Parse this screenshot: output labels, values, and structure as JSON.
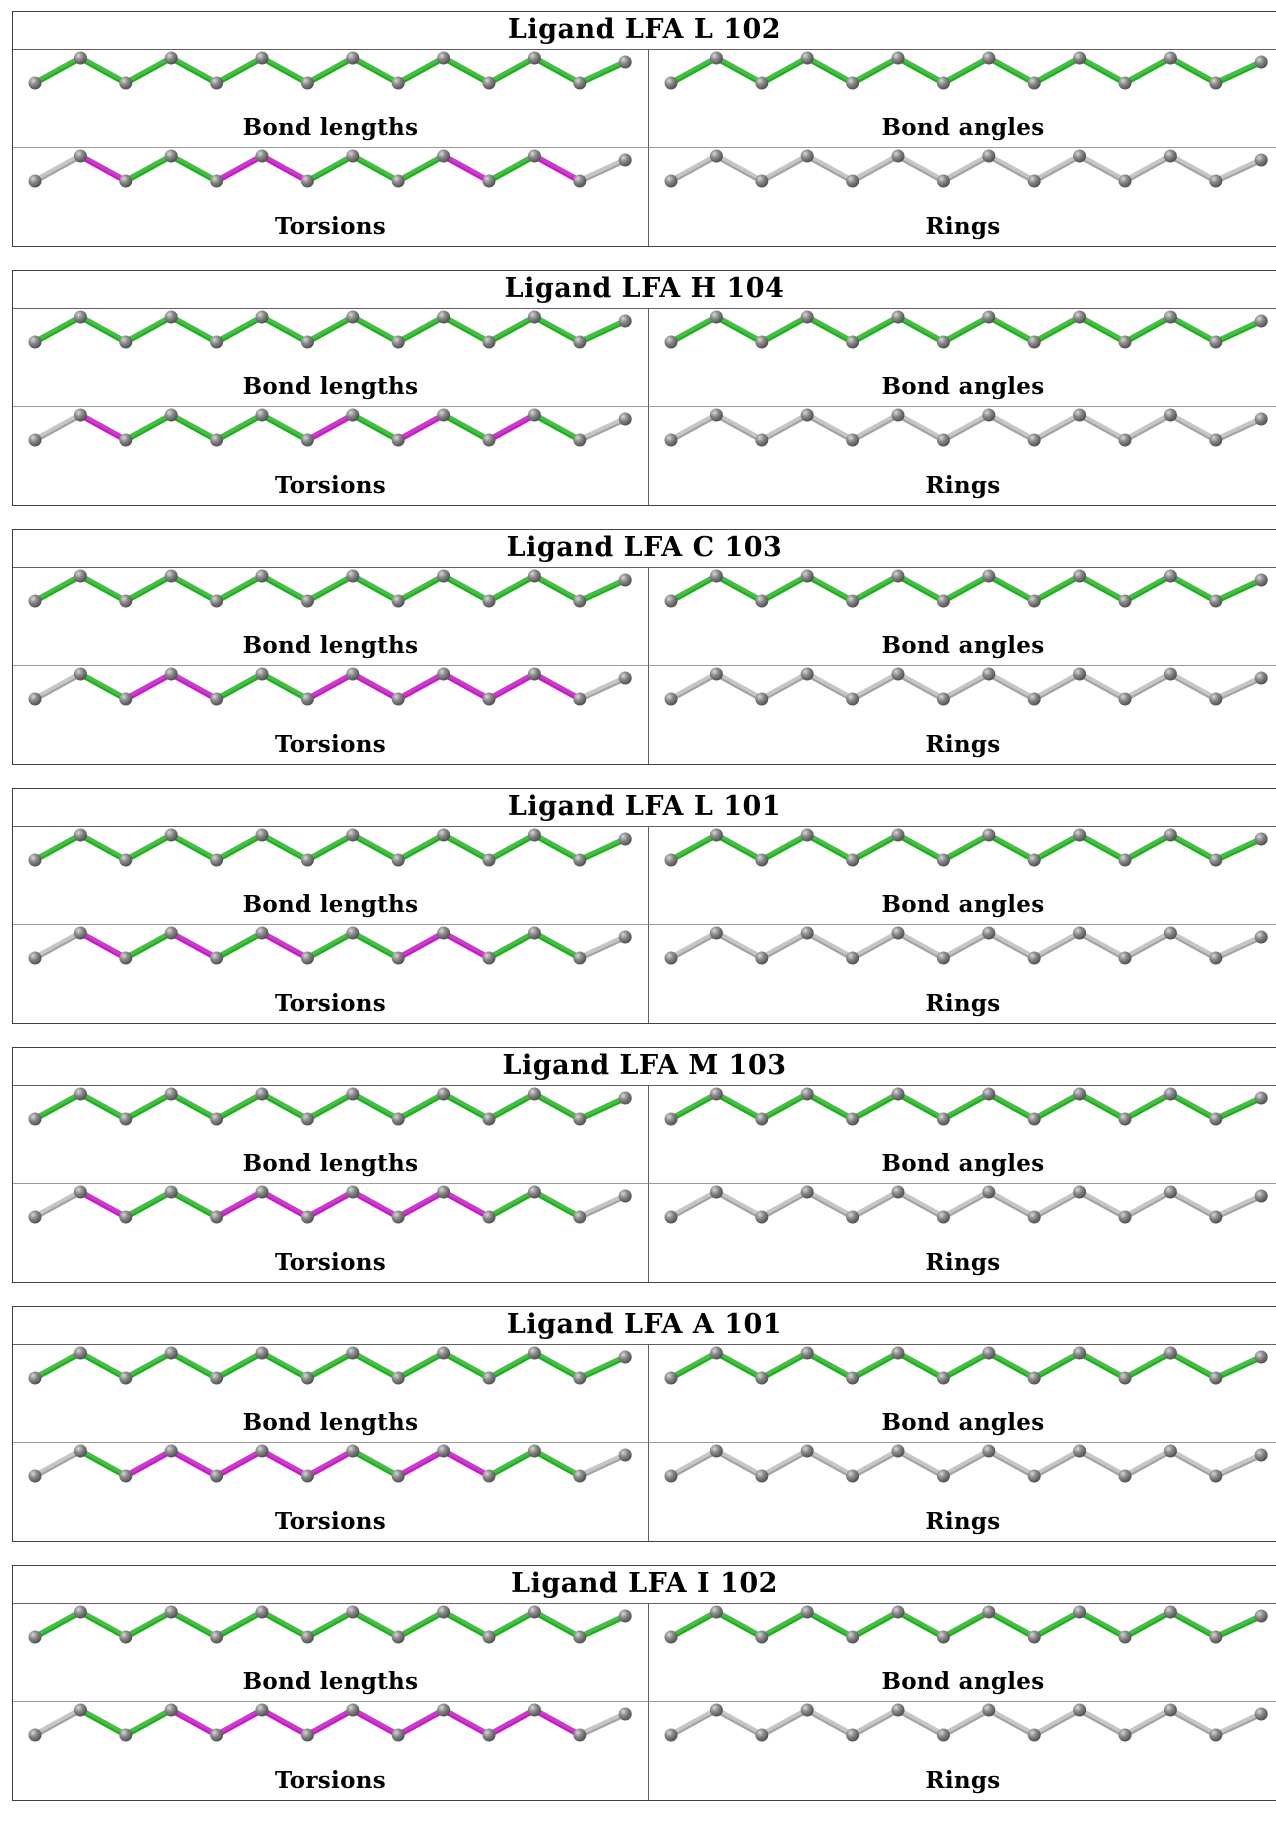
{
  "colors": {
    "ok": "#3cc43c",
    "warn": "#d633d6",
    "neutral": "#c6c6c6",
    "atom": "#7a7a7a"
  },
  "atom_icon": "grey-sphere",
  "ligands": [
    {
      "title": "Ligand LFA L 102",
      "panels": [
        {
          "label": "Bond lengths",
          "bonds": [
            "ok",
            "ok",
            "ok",
            "ok",
            "ok",
            "ok",
            "ok",
            "ok",
            "ok",
            "ok",
            "ok",
            "ok",
            "ok"
          ]
        },
        {
          "label": "Bond angles",
          "bonds": [
            "ok",
            "ok",
            "ok",
            "ok",
            "ok",
            "ok",
            "ok",
            "ok",
            "ok",
            "ok",
            "ok",
            "ok",
            "ok"
          ]
        },
        {
          "label": "Torsions",
          "bonds": [
            "neutral",
            "warn",
            "ok",
            "ok",
            "warn",
            "warn",
            "ok",
            "ok",
            "ok",
            "warn",
            "ok",
            "warn",
            "neutral"
          ]
        },
        {
          "label": "Rings",
          "bonds": [
            "neutral",
            "neutral",
            "neutral",
            "neutral",
            "neutral",
            "neutral",
            "neutral",
            "neutral",
            "neutral",
            "neutral",
            "neutral",
            "neutral",
            "neutral"
          ]
        }
      ]
    },
    {
      "title": "Ligand LFA H 104",
      "panels": [
        {
          "label": "Bond lengths",
          "bonds": [
            "ok",
            "ok",
            "ok",
            "ok",
            "ok",
            "ok",
            "ok",
            "ok",
            "ok",
            "ok",
            "ok",
            "ok",
            "ok"
          ]
        },
        {
          "label": "Bond angles",
          "bonds": [
            "ok",
            "ok",
            "ok",
            "ok",
            "ok",
            "ok",
            "ok",
            "ok",
            "ok",
            "ok",
            "ok",
            "ok",
            "ok"
          ]
        },
        {
          "label": "Torsions",
          "bonds": [
            "neutral",
            "warn",
            "ok",
            "ok",
            "ok",
            "ok",
            "warn",
            "ok",
            "warn",
            "ok",
            "warn",
            "ok",
            "neutral"
          ]
        },
        {
          "label": "Rings",
          "bonds": [
            "neutral",
            "neutral",
            "neutral",
            "neutral",
            "neutral",
            "neutral",
            "neutral",
            "neutral",
            "neutral",
            "neutral",
            "neutral",
            "neutral",
            "neutral"
          ]
        }
      ]
    },
    {
      "title": "Ligand LFA C 103",
      "panels": [
        {
          "label": "Bond lengths",
          "bonds": [
            "ok",
            "ok",
            "ok",
            "ok",
            "ok",
            "ok",
            "ok",
            "ok",
            "ok",
            "ok",
            "ok",
            "ok",
            "ok"
          ]
        },
        {
          "label": "Bond angles",
          "bonds": [
            "ok",
            "ok",
            "ok",
            "ok",
            "ok",
            "ok",
            "ok",
            "ok",
            "ok",
            "ok",
            "ok",
            "ok",
            "ok"
          ]
        },
        {
          "label": "Torsions",
          "bonds": [
            "neutral",
            "ok",
            "warn",
            "warn",
            "ok",
            "ok",
            "warn",
            "warn",
            "warn",
            "warn",
            "warn",
            "warn",
            "neutral"
          ]
        },
        {
          "label": "Rings",
          "bonds": [
            "neutral",
            "neutral",
            "neutral",
            "neutral",
            "neutral",
            "neutral",
            "neutral",
            "neutral",
            "neutral",
            "neutral",
            "neutral",
            "neutral",
            "neutral"
          ]
        }
      ]
    },
    {
      "title": "Ligand LFA L 101",
      "panels": [
        {
          "label": "Bond lengths",
          "bonds": [
            "ok",
            "ok",
            "ok",
            "ok",
            "ok",
            "ok",
            "ok",
            "ok",
            "ok",
            "ok",
            "ok",
            "ok",
            "ok"
          ]
        },
        {
          "label": "Bond angles",
          "bonds": [
            "ok",
            "ok",
            "ok",
            "ok",
            "ok",
            "ok",
            "ok",
            "ok",
            "ok",
            "ok",
            "ok",
            "ok",
            "ok"
          ]
        },
        {
          "label": "Torsions",
          "bonds": [
            "neutral",
            "warn",
            "ok",
            "warn",
            "ok",
            "warn",
            "ok",
            "ok",
            "warn",
            "warn",
            "ok",
            "ok",
            "neutral"
          ]
        },
        {
          "label": "Rings",
          "bonds": [
            "neutral",
            "neutral",
            "neutral",
            "neutral",
            "neutral",
            "neutral",
            "neutral",
            "neutral",
            "neutral",
            "neutral",
            "neutral",
            "neutral",
            "neutral"
          ]
        }
      ]
    },
    {
      "title": "Ligand LFA M 103",
      "panels": [
        {
          "label": "Bond lengths",
          "bonds": [
            "ok",
            "ok",
            "ok",
            "ok",
            "ok",
            "ok",
            "ok",
            "ok",
            "ok",
            "ok",
            "ok",
            "ok",
            "ok"
          ]
        },
        {
          "label": "Bond angles",
          "bonds": [
            "ok",
            "ok",
            "ok",
            "ok",
            "ok",
            "ok",
            "ok",
            "ok",
            "ok",
            "ok",
            "ok",
            "ok",
            "ok"
          ]
        },
        {
          "label": "Torsions",
          "bonds": [
            "neutral",
            "warn",
            "ok",
            "ok",
            "warn",
            "warn",
            "warn",
            "warn",
            "warn",
            "warn",
            "ok",
            "ok",
            "neutral"
          ]
        },
        {
          "label": "Rings",
          "bonds": [
            "neutral",
            "neutral",
            "neutral",
            "neutral",
            "neutral",
            "neutral",
            "neutral",
            "neutral",
            "neutral",
            "neutral",
            "neutral",
            "neutral",
            "neutral"
          ]
        }
      ]
    },
    {
      "title": "Ligand LFA A 101",
      "panels": [
        {
          "label": "Bond lengths",
          "bonds": [
            "ok",
            "ok",
            "ok",
            "ok",
            "ok",
            "ok",
            "ok",
            "ok",
            "ok",
            "ok",
            "ok",
            "ok",
            "ok"
          ]
        },
        {
          "label": "Bond angles",
          "bonds": [
            "ok",
            "ok",
            "ok",
            "ok",
            "ok",
            "ok",
            "ok",
            "ok",
            "ok",
            "ok",
            "ok",
            "ok",
            "ok"
          ]
        },
        {
          "label": "Torsions",
          "bonds": [
            "neutral",
            "ok",
            "warn",
            "warn",
            "warn",
            "warn",
            "warn",
            "ok",
            "warn",
            "warn",
            "ok",
            "ok",
            "neutral"
          ]
        },
        {
          "label": "Rings",
          "bonds": [
            "neutral",
            "neutral",
            "neutral",
            "neutral",
            "neutral",
            "neutral",
            "neutral",
            "neutral",
            "neutral",
            "neutral",
            "neutral",
            "neutral",
            "neutral"
          ]
        }
      ]
    },
    {
      "title": "Ligand LFA I 102",
      "panels": [
        {
          "label": "Bond lengths",
          "bonds": [
            "ok",
            "ok",
            "ok",
            "ok",
            "ok",
            "ok",
            "ok",
            "ok",
            "ok",
            "ok",
            "ok",
            "ok",
            "ok"
          ]
        },
        {
          "label": "Bond angles",
          "bonds": [
            "ok",
            "ok",
            "ok",
            "ok",
            "ok",
            "ok",
            "ok",
            "ok",
            "ok",
            "ok",
            "ok",
            "ok",
            "ok"
          ]
        },
        {
          "label": "Torsions",
          "bonds": [
            "neutral",
            "ok",
            "ok",
            "warn",
            "warn",
            "warn",
            "warn",
            "warn",
            "warn",
            "warn",
            "warn",
            "warn",
            "neutral"
          ]
        },
        {
          "label": "Rings",
          "bonds": [
            "neutral",
            "neutral",
            "neutral",
            "neutral",
            "neutral",
            "neutral",
            "neutral",
            "neutral",
            "neutral",
            "neutral",
            "neutral",
            "neutral",
            "neutral"
          ]
        }
      ]
    }
  ]
}
